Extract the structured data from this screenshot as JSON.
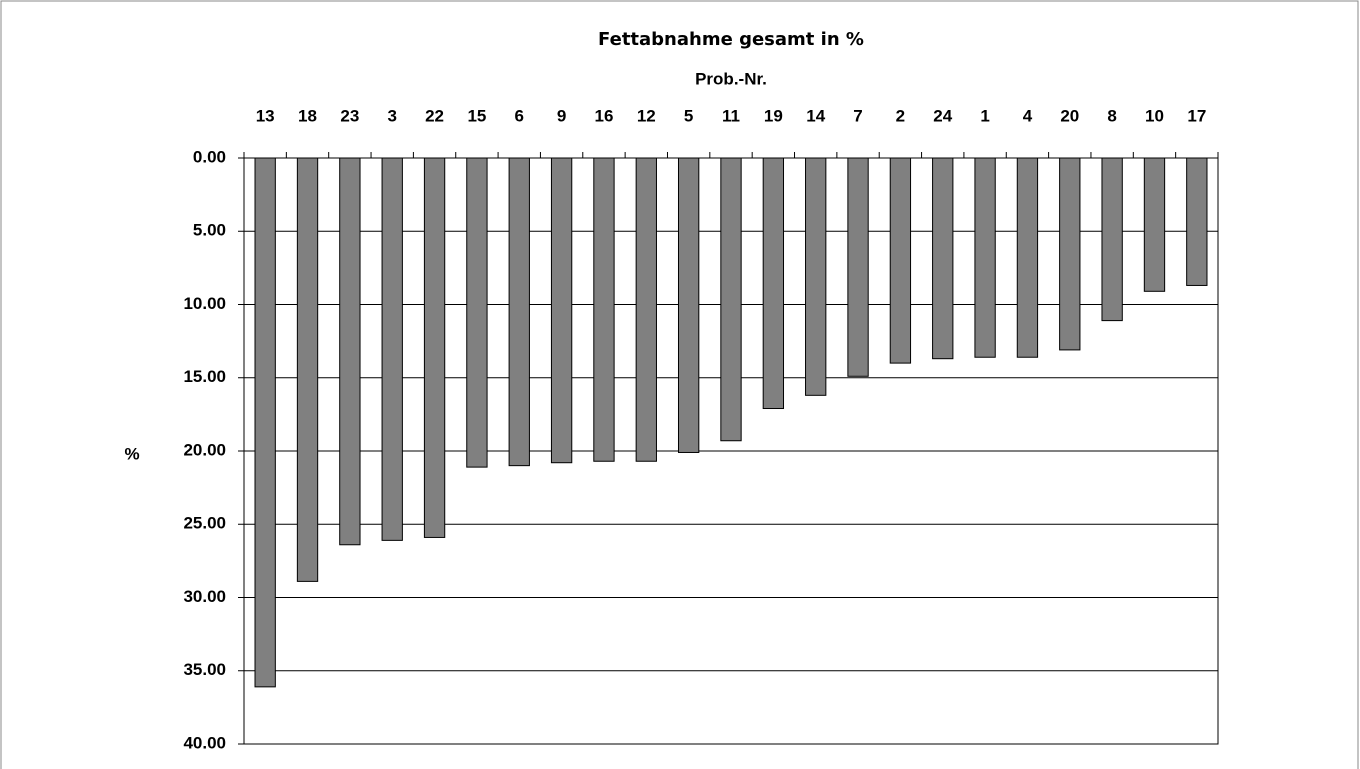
{
  "chart_data": {
    "type": "bar",
    "title": "Fettabnahme gesamt in %",
    "x_label": "Prob.-Nr.",
    "y_label": "%",
    "categories": [
      "13",
      "18",
      "23",
      "3",
      "22",
      "15",
      "6",
      "9",
      "16",
      "12",
      "5",
      "11",
      "19",
      "14",
      "7",
      "2",
      "24",
      "1",
      "4",
      "20",
      "8",
      "10",
      "17"
    ],
    "values": [
      36.1,
      28.9,
      26.4,
      26.1,
      25.9,
      21.1,
      21.0,
      20.8,
      20.7,
      20.7,
      20.1,
      19.3,
      17.1,
      16.2,
      14.9,
      14.0,
      13.7,
      13.6,
      13.6,
      13.1,
      11.1,
      9.1,
      8.7
    ],
    "color": "#808080",
    "y_inverted": true,
    "x_axis_position": "top",
    "ylim": [
      0,
      40
    ],
    "yticks": [
      {
        "value": 0,
        "label": "0.00"
      },
      {
        "value": 5,
        "label": "5.00"
      },
      {
        "value": 10,
        "label": "10.00"
      },
      {
        "value": 15,
        "label": "15.00"
      },
      {
        "value": 20,
        "label": "20.00"
      },
      {
        "value": 25,
        "label": "25.00"
      },
      {
        "value": 30,
        "label": "30.00"
      },
      {
        "value": 35,
        "label": "35.00"
      },
      {
        "value": 40,
        "label": "40.00"
      }
    ],
    "grid": true
  }
}
